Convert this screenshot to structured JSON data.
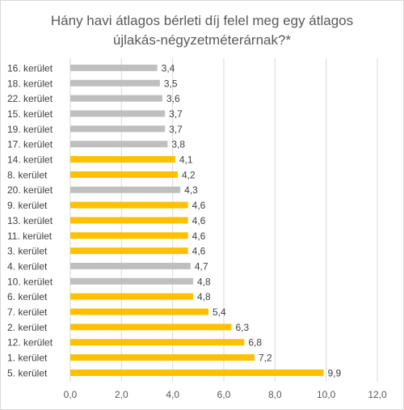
{
  "chart_data": {
    "type": "bar",
    "orientation": "horizontal",
    "title_lines": [
      "Hány havi átlagos bérleti díj felel meg egy átlagos",
      "újlakás-négyzetméterárnak?*"
    ],
    "categories": [
      "16. kerület",
      "18. kerület",
      "22. kerület",
      "15. kerület",
      "19. kerület",
      "17. kerület",
      "14. kerület",
      "8. kerület",
      "20. kerület",
      "9. kerület",
      "13. kerület",
      "11. kerület",
      "3. kerület",
      "4. kerület",
      "10. kerület",
      "6. kerület",
      "7. kerület",
      "2. kerület",
      "12. kerület",
      "1. kerület",
      "5. kerület"
    ],
    "values": [
      3.4,
      3.5,
      3.6,
      3.7,
      3.7,
      3.8,
      4.1,
      4.2,
      4.3,
      4.6,
      4.6,
      4.6,
      4.6,
      4.7,
      4.8,
      4.8,
      5.4,
      6.3,
      6.8,
      7.2,
      9.9
    ],
    "value_labels": [
      "3,4",
      "3,5",
      "3,6",
      "3,7",
      "3,7",
      "3,8",
      "4,1",
      "4,2",
      "4,3",
      "4,6",
      "4,6",
      "4,6",
      "4,6",
      "4,7",
      "4,8",
      "4,8",
      "5,4",
      "6,3",
      "6,8",
      "7,2",
      "9,9"
    ],
    "bar_colors": [
      "#bfbfbf",
      "#bfbfbf",
      "#bfbfbf",
      "#bfbfbf",
      "#bfbfbf",
      "#bfbfbf",
      "#ffc000",
      "#ffc000",
      "#bfbfbf",
      "#ffc000",
      "#ffc000",
      "#ffc000",
      "#ffc000",
      "#bfbfbf",
      "#bfbfbf",
      "#ffc000",
      "#ffc000",
      "#ffc000",
      "#ffc000",
      "#ffc000",
      "#ffc000"
    ],
    "xlim": [
      0,
      12
    ],
    "xticks": [
      0,
      2,
      4,
      6,
      8,
      10,
      12
    ],
    "xtick_labels": [
      "0,0",
      "2,0",
      "4,0",
      "6,0",
      "8,0",
      "10,0",
      "12,0"
    ],
    "xlabel": "",
    "ylabel": "",
    "grid": "vertical",
    "legend": "none"
  }
}
